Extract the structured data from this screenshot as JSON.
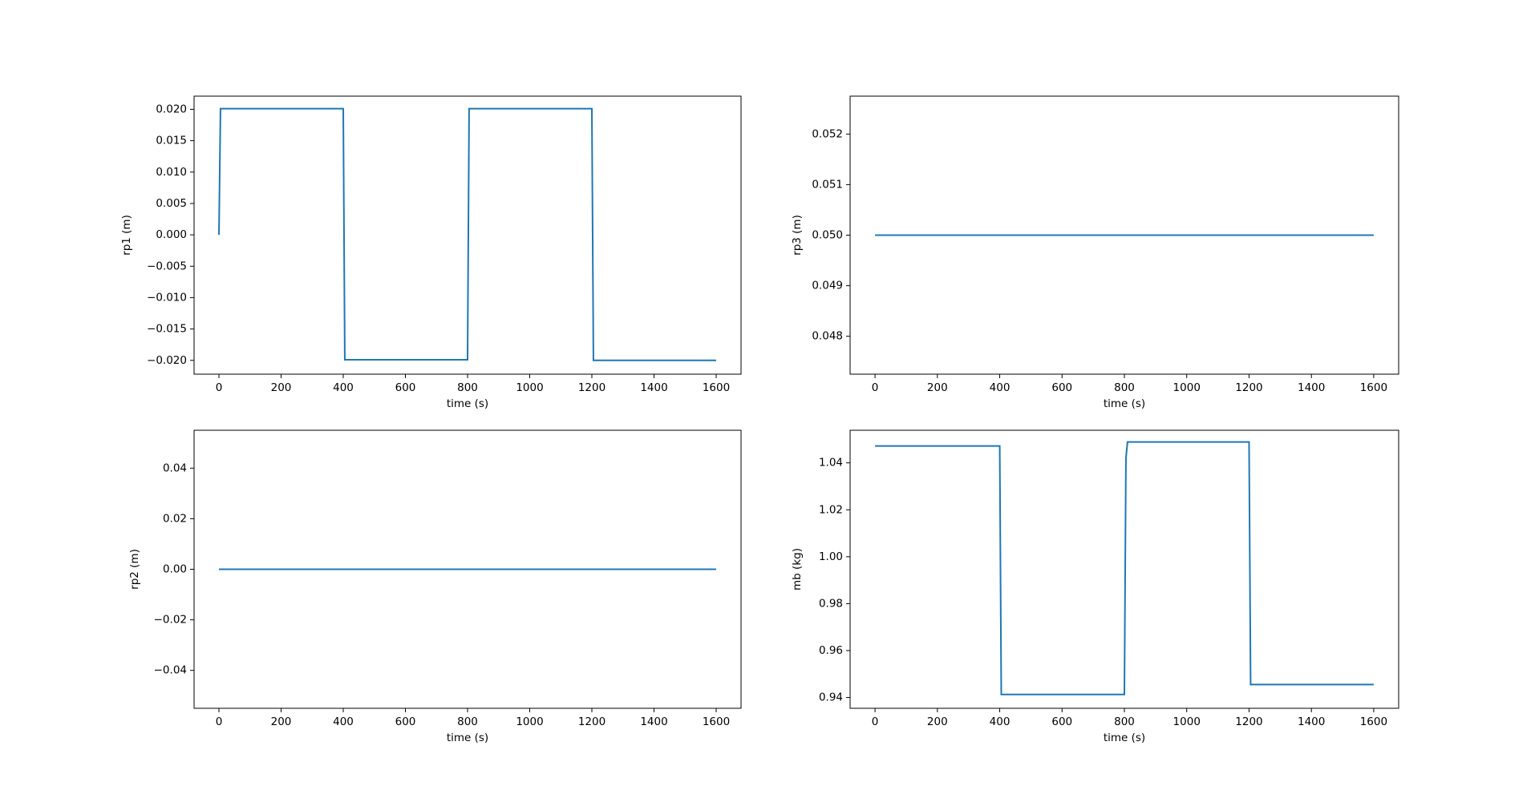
{
  "chart_data": [
    {
      "type": "line",
      "xlabel": "time (s)",
      "ylabel": "rp1 (m)",
      "x": [
        0,
        5,
        400,
        405,
        800,
        805,
        1200,
        1205,
        1600
      ],
      "values": [
        0,
        0.0201,
        0.0201,
        -0.0199,
        -0.0199,
        0.0201,
        0.0201,
        -0.02,
        -0.02
      ],
      "color": "#1f77b4",
      "xlim": [
        -80,
        1680
      ],
      "xticks": [
        0,
        200,
        400,
        600,
        800,
        1000,
        1200,
        1400,
        1600
      ],
      "ylim": [
        -0.0222,
        0.0221
      ],
      "yticks": [
        {
          "value": -0.02,
          "label": "−0.020"
        },
        {
          "value": -0.015,
          "label": "−0.015"
        },
        {
          "value": -0.01,
          "label": "−0.010"
        },
        {
          "value": -0.005,
          "label": "−0.005"
        },
        {
          "value": 0,
          "label": "0.000"
        },
        {
          "value": 0.005,
          "label": "0.005"
        },
        {
          "value": 0.01,
          "label": "0.010"
        },
        {
          "value": 0.015,
          "label": "0.015"
        },
        {
          "value": 0.02,
          "label": "0.020"
        }
      ]
    },
    {
      "type": "line",
      "xlabel": "time (s)",
      "ylabel": "rp3 (m)",
      "x": [
        0,
        1600
      ],
      "values": [
        0.05,
        0.05
      ],
      "color": "#1f77b4",
      "xlim": [
        -80,
        1680
      ],
      "xticks": [
        0,
        200,
        400,
        600,
        800,
        1000,
        1200,
        1400,
        1600
      ],
      "ylim": [
        0.04725,
        0.05275
      ],
      "yticks": [
        0.048,
        0.049,
        {
          "value": 0.05,
          "label": "0.050"
        },
        0.051,
        0.052
      ]
    },
    {
      "type": "line",
      "xlabel": "time (s)",
      "ylabel": "rp2 (m)",
      "x": [
        0,
        1600
      ],
      "values": [
        0,
        0
      ],
      "color": "#1f77b4",
      "xlim": [
        -80,
        1680
      ],
      "xticks": [
        0,
        200,
        400,
        600,
        800,
        1000,
        1200,
        1400,
        1600
      ],
      "ylim": [
        -0.055,
        0.055
      ],
      "yticks": [
        {
          "value": -0.04,
          "label": "−0.04"
        },
        {
          "value": -0.02,
          "label": "−0.02"
        },
        {
          "value": 0,
          "label": "0.00"
        },
        0.02,
        0.04
      ]
    },
    {
      "type": "line",
      "xlabel": "time (s)",
      "ylabel": "mb (kg)",
      "x": [
        0,
        400,
        405,
        800,
        805,
        810,
        1200,
        1205,
        1600
      ],
      "values": [
        1.0472,
        1.0472,
        0.9413,
        0.9413,
        1.042,
        1.0489,
        1.0489,
        0.9455,
        0.9455
      ],
      "color": "#1f77b4",
      "xlim": [
        -80,
        1680
      ],
      "xticks": [
        0,
        200,
        400,
        600,
        800,
        1000,
        1200,
        1400,
        1600
      ],
      "ylim": [
        0.9354,
        1.0539
      ],
      "yticks": [
        0.94,
        0.96,
        0.98,
        {
          "value": 1,
          "label": "1.00"
        },
        1.02,
        1.04
      ]
    }
  ]
}
